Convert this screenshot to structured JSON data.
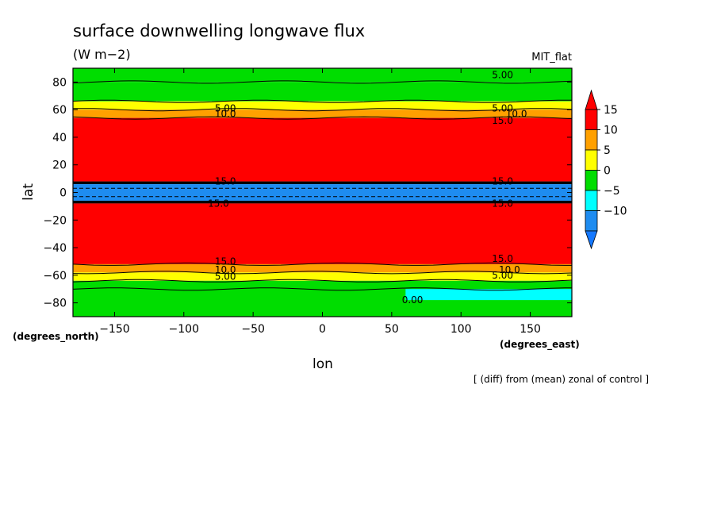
{
  "chart_data": {
    "type": "heatmap",
    "title": "surface downwelling longwave flux",
    "subtitle": "(W m−2)",
    "model": "MIT_flat",
    "xlabel": "lon",
    "ylabel": "lat",
    "x_units": "(degrees_east)",
    "y_units": "(degrees_north)",
    "footnote": "[ (diff) from (mean) zonal of control ]",
    "xlim": [
      -180,
      180
    ],
    "ylim": [
      -90,
      90
    ],
    "x_ticks": [
      -150,
      -100,
      -50,
      0,
      50,
      100,
      150
    ],
    "y_ticks": [
      -80,
      -60,
      -40,
      -20,
      0,
      20,
      40,
      60,
      80
    ],
    "x_tick_labels": [
      "−150",
      "−100",
      "−50",
      "0",
      "50",
      "100",
      "150"
    ],
    "y_tick_labels": [
      "−80",
      "−60",
      "−40",
      "−20",
      "0",
      "20",
      "40",
      "60",
      "80"
    ],
    "colorbar": {
      "levels": [
        -10,
        -5,
        0,
        5,
        10,
        15
      ],
      "labels": [
        "−10",
        "−5",
        "0",
        "5",
        "10",
        "15"
      ],
      "colors": [
        "#1e8cf0",
        "#00ffff",
        "#00dd00",
        "#ffff00",
        "#ffa000",
        "#ff0000",
        "#1478ff",
        "#ff0000"
      ]
    },
    "bands": [
      {
        "lat": [
          80,
          90
        ],
        "value": 3,
        "color": "#00dd00"
      },
      {
        "lat": [
          66,
          80
        ],
        "value": 3,
        "color": "#00dd00"
      },
      {
        "lat": [
          60,
          66
        ],
        "value": 7,
        "color": "#ffff00"
      },
      {
        "lat": [
          54,
          60
        ],
        "value": 12,
        "color": "#ffa000"
      },
      {
        "lat": [
          8,
          54
        ],
        "value": 20,
        "color": "#ff0000"
      },
      {
        "lat": [
          6,
          8
        ],
        "value": 0,
        "color": "#000000"
      },
      {
        "lat": [
          -6,
          6
        ],
        "value": -8,
        "color": "#1e8cf0"
      },
      {
        "lat": [
          -8,
          -6
        ],
        "value": 0,
        "color": "#000000"
      },
      {
        "lat": [
          -52,
          -8
        ],
        "value": 20,
        "color": "#ff0000"
      },
      {
        "lat": [
          -58,
          -52
        ],
        "value": 12,
        "color": "#ffa000"
      },
      {
        "lat": [
          -64,
          -58
        ],
        "value": 7,
        "color": "#ffff00"
      },
      {
        "lat": [
          -90,
          -64
        ],
        "value": 3,
        "color": "#00dd00"
      },
      {
        "lat": [
          -78,
          -70
        ],
        "lon": [
          60,
          180
        ],
        "value": -2,
        "color": "#00ffff"
      }
    ],
    "contour_labels": [
      {
        "text": "5.00",
        "lon": 130,
        "lat": 85
      },
      {
        "text": "5.00",
        "lon": -70,
        "lat": 61
      },
      {
        "text": "10.0",
        "lon": -70,
        "lat": 57
      },
      {
        "text": "5.00",
        "lon": 130,
        "lat": 61
      },
      {
        "text": "10.0",
        "lon": 140,
        "lat": 57
      },
      {
        "text": "15.0",
        "lon": 130,
        "lat": 52
      },
      {
        "text": "15.0",
        "lon": -70,
        "lat": 8
      },
      {
        "text": "15.0",
        "lon": 130,
        "lat": 8
      },
      {
        "text": "15.0",
        "lon": -75,
        "lat": -8
      },
      {
        "text": "15.0",
        "lon": 130,
        "lat": -8
      },
      {
        "text": "15.0",
        "lon": -70,
        "lat": -50
      },
      {
        "text": "10.0",
        "lon": -70,
        "lat": -56
      },
      {
        "text": "5.00",
        "lon": -70,
        "lat": -61
      },
      {
        "text": "15.0",
        "lon": 130,
        "lat": -48
      },
      {
        "text": "10.0",
        "lon": 135,
        "lat": -56
      },
      {
        "text": "5.00",
        "lon": 130,
        "lat": -60
      },
      {
        "text": "0.00",
        "lon": 65,
        "lat": -78
      }
    ]
  }
}
